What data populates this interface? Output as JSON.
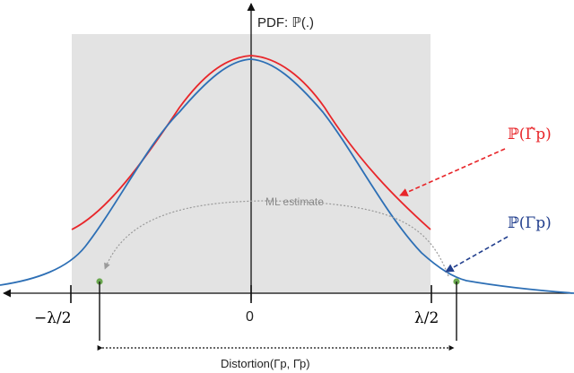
{
  "title": "PDF: ℙ(.)",
  "labels": {
    "curve_red": "ℙ(Γ̂p)",
    "curve_blue": "ℙ(Γp)",
    "ml_estimate": "ML estimate",
    "distortion": "Distortion(Γp, Γ̂p)",
    "tick_left": "−λ/2",
    "tick_zero": "0",
    "tick_right": "λ/2"
  },
  "colors": {
    "red": "#e8262a",
    "blue": "#2d6fb5",
    "navy": "#23408e",
    "shade": "#e3e3e3",
    "dot": "#6aa84f",
    "ml_arrow": "#a0a0a0",
    "axis": "#111111"
  }
}
